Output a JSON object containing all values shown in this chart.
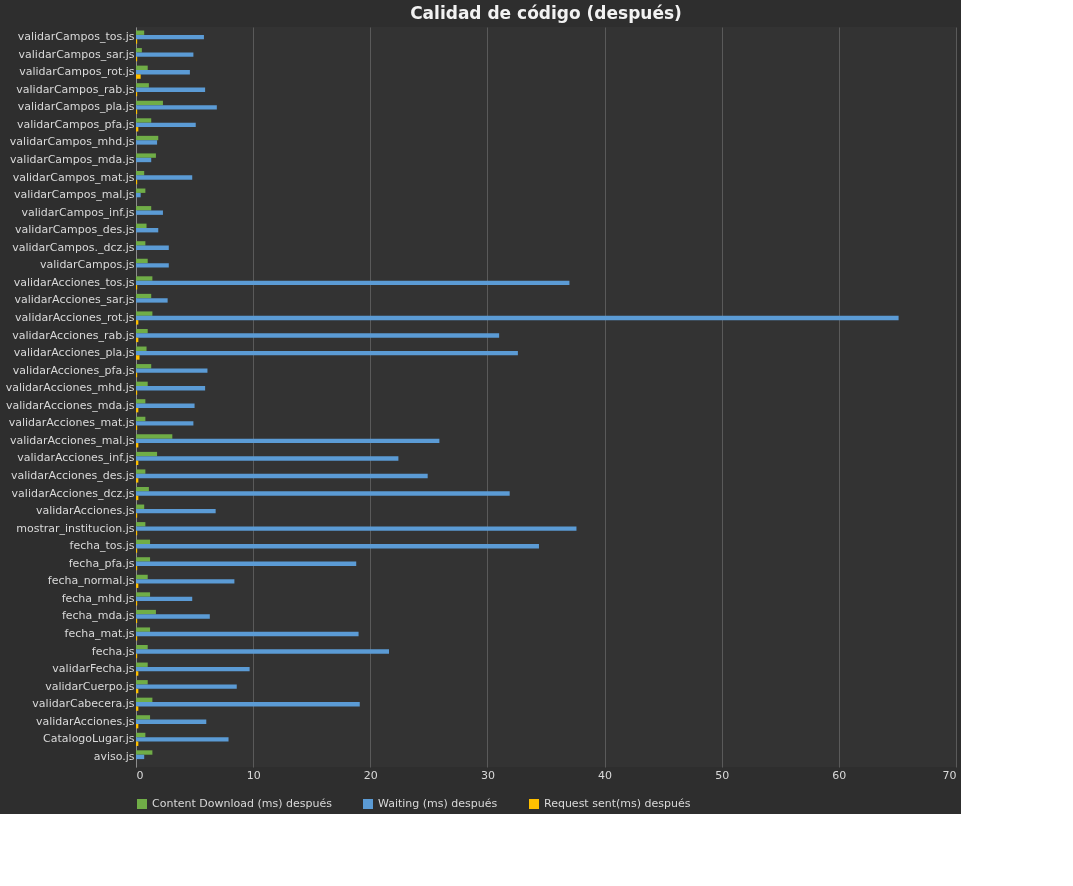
{
  "chart_data": {
    "type": "bar",
    "orientation": "horizontal",
    "title": "Calidad de código (después)",
    "categories": [
      "validarCampos_tos.js",
      "validarCampos_sar.js",
      "validarCampos_rot.js",
      "validarCampos_rab.js",
      "validarCampos_pla.js",
      "validarCampos_pfa.js",
      "validarCampos_mhd.js",
      "validarCampos_mda.js",
      "validarCampos_mat.js",
      "validarCampos_mal.js",
      "validarCampos_inf.js",
      "validarCampos_des.js",
      "validarCampos._dcz.js",
      "validarCampos.js",
      "validarAcciones_tos.js",
      "validarAcciones_sar.js",
      "validarAcciones_rot.js",
      "validarAcciones_rab.js",
      "validarAcciones_pla.js",
      "validarAcciones_pfa.js",
      "validarAcciones_mhd.js",
      "validarAcciones_mda.js",
      "validarAcciones_mat.js",
      "validarAcciones_mal.js",
      "validarAcciones_inf.js",
      "validarAcciones_des.js",
      "validarAcciones_dcz.js",
      "validarAcciones.js",
      "mostrar_institucion.js",
      "fecha_tos.js",
      "fecha_pfa.js",
      "fecha_normal.js",
      "fecha_mhd.js",
      "fecha_mda.js",
      "fecha_mat.js",
      "fecha.js",
      "validarFecha.js",
      "validarCuerpo.js",
      "validarCabecera.js",
      "validarAcciones.js",
      "CatalogoLugar.js",
      "aviso.js"
    ],
    "series": [
      {
        "name": "Content Download (ms) después",
        "color": "#70ad47",
        "values": [
          0.7,
          0.5,
          1.0,
          1.1,
          2.3,
          1.3,
          1.9,
          1.7,
          0.7,
          0.8,
          1.3,
          0.9,
          0.8,
          1.0,
          1.4,
          1.3,
          1.4,
          1.0,
          0.9,
          1.3,
          1.0,
          0.8,
          0.8,
          3.1,
          1.8,
          0.8,
          1.1,
          0.7,
          0.8,
          1.2,
          1.2,
          1.0,
          1.2,
          1.7,
          1.2,
          1.0,
          1.0,
          1.0,
          1.4,
          1.2,
          0.8,
          1.4
        ]
      },
      {
        "name": "Waiting (ms) después",
        "color": "#5b9bd5",
        "values": [
          5.8,
          4.9,
          4.6,
          5.9,
          6.9,
          5.1,
          1.8,
          1.3,
          4.8,
          0.4,
          2.3,
          1.9,
          2.8,
          2.8,
          37.0,
          2.7,
          65.1,
          31.0,
          32.6,
          6.1,
          5.9,
          5.0,
          4.9,
          25.9,
          22.4,
          24.9,
          31.9,
          6.8,
          37.6,
          34.4,
          18.8,
          8.4,
          4.8,
          6.3,
          19.0,
          21.6,
          9.7,
          8.6,
          19.1,
          6.0,
          7.9,
          0.7
        ]
      },
      {
        "name": "Request sent(ms) después",
        "color": "#ffc000",
        "values": [
          0.1,
          0.1,
          0.4,
          0.1,
          0.1,
          0.2,
          0,
          0,
          0.1,
          0,
          0,
          0,
          0,
          0,
          0.1,
          0,
          0.2,
          0.2,
          0.3,
          0.1,
          0.1,
          0.2,
          0.1,
          0.2,
          0.2,
          0.2,
          0.2,
          0.1,
          0.1,
          0.1,
          0.1,
          0.2,
          0.1,
          0.1,
          0.1,
          0.1,
          0.2,
          0.2,
          0.2,
          0.2,
          0.2,
          0
        ]
      }
    ],
    "xlim": [
      0,
      70
    ],
    "xticks": [
      0,
      10,
      20,
      30,
      40,
      50,
      60,
      70
    ],
    "grid": "x",
    "legend": "bottom"
  }
}
